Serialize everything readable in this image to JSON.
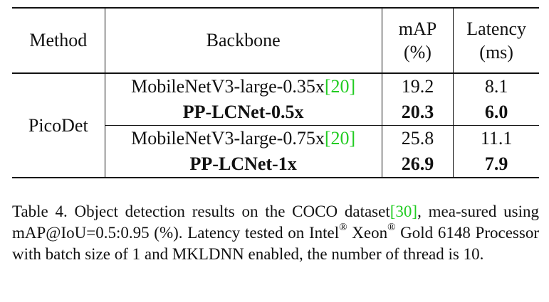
{
  "table": {
    "headers": {
      "method": "Method",
      "backbone": "Backbone",
      "map_line1": "mAP",
      "map_line2": "(%)",
      "latency_line1": "Latency",
      "latency_line2": "(ms)"
    },
    "method_label": "PicoDet",
    "rows": [
      {
        "backbone": "MobileNetV3-large-0.35x",
        "cite": "[20]",
        "map": "19.2",
        "latency": "8.1",
        "bold": false
      },
      {
        "backbone": "PP-LCNet-0.5x",
        "cite": "",
        "map": "20.3",
        "latency": "6.0",
        "bold": true
      },
      {
        "backbone": "MobileNetV3-large-0.75x",
        "cite": "[20]",
        "map": "25.8",
        "latency": "11.1",
        "bold": false
      },
      {
        "backbone": "PP-LCNet-1x",
        "cite": "",
        "map": "26.9",
        "latency": "7.9",
        "bold": true
      }
    ]
  },
  "caption": {
    "part1": "Table 4. Object detection results on the COCO dataset",
    "cite": "[30]",
    "part2": ", mea-sured using mAP@IoU=0.5:0.95 (%).  Latency tested on Intel",
    "reg1": "®",
    "part3": " Xeon",
    "reg2": "®",
    "part4": " Gold 6148 Processor with batch size of 1 and MKLDNN enabled, the number of thread is 10."
  },
  "colors": {
    "citation": "#22cc22",
    "text": "#111111"
  }
}
